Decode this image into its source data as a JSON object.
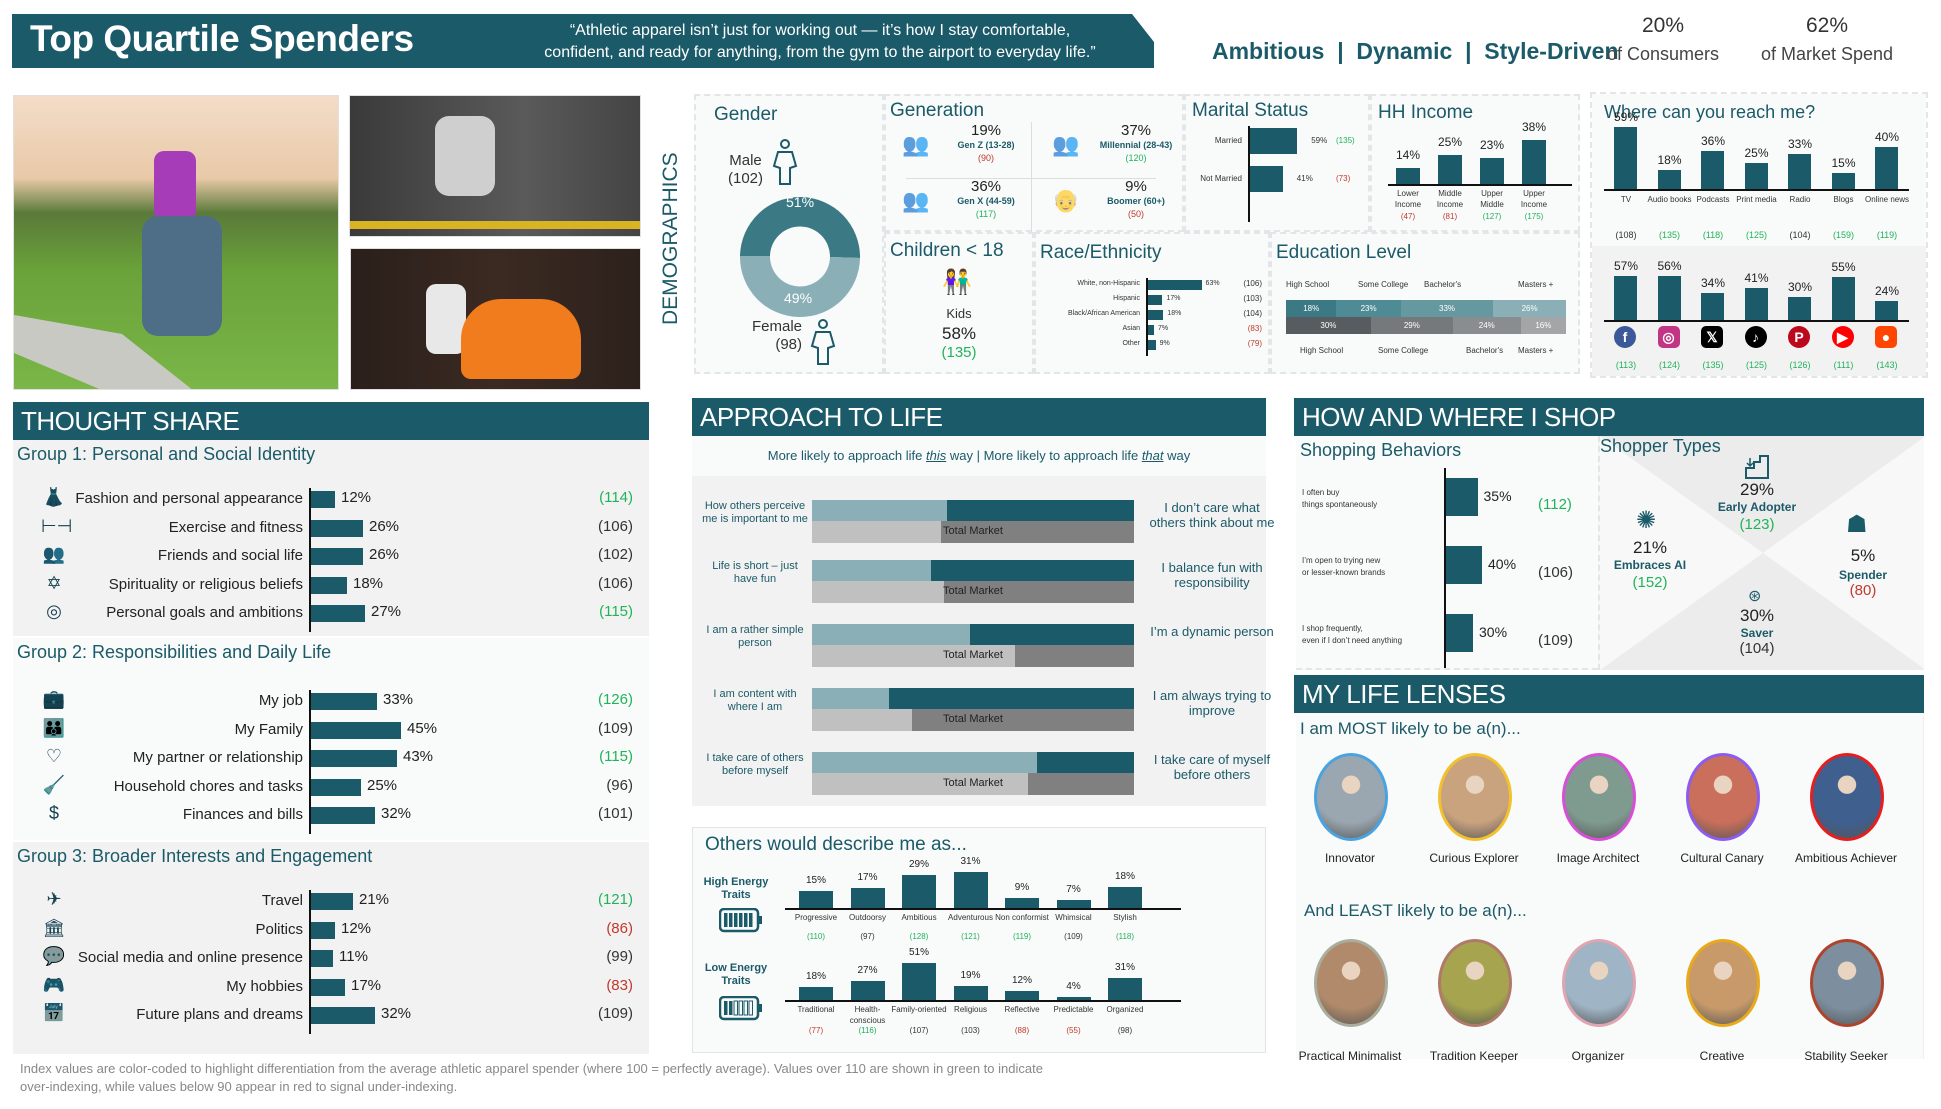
{
  "header": {
    "title": "Top Quartile Spenders",
    "quote_line1": "“Athletic apparel isn’t just for working out — it’s how I stay comfortable,",
    "quote_line2": "confident, and ready for anything, from the gym to the airport to everyday life.”",
    "tags": "Ambitious  |  Dynamic  |  Style-Driven",
    "stat1_value": "20%",
    "stat1_label": "of Consumers",
    "stat2_value": "62%",
    "stat2_label": "of Market Spend"
  },
  "photos": {
    "photo1": "woman-jogging-with-stroller",
    "photo2": "man-battle-ropes-gym",
    "photo3": "woman-situps-orange-leggings"
  },
  "demographics": {
    "side_label": "DEMOGRAPHICS",
    "gender": {
      "title": "Gender",
      "male_label": "Male",
      "male_index": "(102)",
      "male_pct": "51%",
      "female_label": "Female",
      "female_index": "(98)",
      "female_pct": "49%"
    },
    "generation": {
      "title": "Generation",
      "items": [
        {
          "pct": "19%",
          "label": "Gen Z (13-28)",
          "index": "(90)",
          "color": "r"
        },
        {
          "pct": "37%",
          "label": "Millennial (28-43)",
          "index": "(120)",
          "color": "g"
        },
        {
          "pct": "36%",
          "label": "Gen X (44-59)",
          "index": "(117)",
          "color": "g"
        },
        {
          "pct": "9%",
          "label": "Boomer (60+)",
          "index": "(50)",
          "color": "r"
        }
      ]
    },
    "marital": {
      "title": "Marital Status",
      "items": [
        {
          "label": "Married",
          "pct": "59%",
          "value": 59,
          "index": "(135)",
          "color": "g"
        },
        {
          "label": "Not Married",
          "pct": "41%",
          "value": 41,
          "index": "(73)",
          "color": "r"
        }
      ]
    },
    "income": {
      "title": "HH Income",
      "items": [
        {
          "pct": "14%",
          "value": 14,
          "label1": "Lower",
          "label2": "Income",
          "index": "(47)",
          "color": "r"
        },
        {
          "pct": "25%",
          "value": 25,
          "label1": "Middle",
          "label2": "Income",
          "index": "(81)",
          "color": "r"
        },
        {
          "pct": "23%",
          "value": 23,
          "label1": "Upper",
          "label2": "Middle",
          "index": "(127)",
          "color": "g"
        },
        {
          "pct": "38%",
          "value": 38,
          "label1": "Upper",
          "label2": "Income",
          "index": "(175)",
          "color": "g"
        }
      ]
    },
    "children": {
      "title": "Children < 18",
      "label": "Kids",
      "pct": "58%",
      "index": "(135)"
    },
    "race": {
      "title": "Race/Ethnicity",
      "items": [
        {
          "label": "White, non-Hispanic",
          "pct": "63%",
          "value": 63,
          "index": "(106)",
          "color": "k"
        },
        {
          "label": "Hispanic",
          "pct": "17%",
          "value": 17,
          "index": "(103)",
          "color": "k"
        },
        {
          "label": "Black/African  American",
          "pct": "18%",
          "value": 18,
          "index": "(104)",
          "color": "k"
        },
        {
          "label": "Asian",
          "pct": "7%",
          "value": 7,
          "index": "(83)",
          "color": "r"
        },
        {
          "label": "Other",
          "pct": "9%",
          "value": 9,
          "index": "(79)",
          "color": "r"
        }
      ]
    },
    "education": {
      "title": "Education Level",
      "top_labels": [
        "High School",
        "Some College",
        "Bachelor's",
        "Masters +"
      ],
      "segment_row": [
        {
          "pct": "18%",
          "value": 18,
          "color": "#3b7a84"
        },
        {
          "pct": "23%",
          "value": 23,
          "color": "#4f8b94"
        },
        {
          "pct": "33%",
          "value": 33,
          "color": "#66999f"
        },
        {
          "pct": "26%",
          "value": 26,
          "color": "#8aafb6"
        }
      ],
      "market_row": [
        {
          "pct": "30%",
          "value": 30,
          "color": "#575c60"
        },
        {
          "pct": "29%",
          "value": 29,
          "color": "#75797c"
        },
        {
          "pct": "24%",
          "value": 24,
          "color": "#8a8d90"
        },
        {
          "pct": "16%",
          "value": 16,
          "color": "#a3a5a7"
        }
      ],
      "bottom_labels": [
        "High School",
        "Some College",
        "Bachelor's",
        "Masters +"
      ]
    }
  },
  "reach": {
    "title": "Where can you reach me?",
    "media": [
      {
        "pct": "59%",
        "value": 59,
        "label": "TV",
        "index": "(108)",
        "color": "k"
      },
      {
        "pct": "18%",
        "value": 18,
        "label": "Audio books",
        "index": "(135)",
        "color": "g"
      },
      {
        "pct": "36%",
        "value": 36,
        "label": "Podcasts",
        "index": "(118)",
        "color": "g"
      },
      {
        "pct": "25%",
        "value": 25,
        "label": "Print media",
        "index": "(125)",
        "color": "g"
      },
      {
        "pct": "33%",
        "value": 33,
        "label": "Radio",
        "index": "(104)",
        "color": "k"
      },
      {
        "pct": "15%",
        "value": 15,
        "label": "Blogs",
        "index": "(159)",
        "color": "g"
      },
      {
        "pct": "40%",
        "value": 40,
        "label": "Online news",
        "index": "(119)",
        "color": "g"
      }
    ],
    "social": [
      {
        "pct": "57%",
        "value": 57,
        "icon": "facebook-icon",
        "glyph": "f",
        "bg": "#3b5998",
        "index": "(113)"
      },
      {
        "pct": "56%",
        "value": 56,
        "icon": "instagram-icon",
        "glyph": "◎",
        "bg": "#c13584",
        "index": "(124)"
      },
      {
        "pct": "34%",
        "value": 34,
        "icon": "x-icon",
        "glyph": "𝕏",
        "bg": "#000000",
        "index": "(135)"
      },
      {
        "pct": "41%",
        "value": 41,
        "icon": "tiktok-icon",
        "glyph": "♪",
        "bg": "#000000",
        "index": "(125)"
      },
      {
        "pct": "30%",
        "value": 30,
        "icon": "pinterest-icon",
        "glyph": "P",
        "bg": "#bd081c",
        "index": "(126)"
      },
      {
        "pct": "55%",
        "value": 55,
        "icon": "youtube-icon",
        "glyph": "▶",
        "bg": "#ff0000",
        "index": "(111)"
      },
      {
        "pct": "24%",
        "value": 24,
        "icon": "reddit-icon",
        "glyph": "●",
        "bg": "#ff4500",
        "index": "(143)"
      }
    ]
  },
  "thought_share": {
    "title": "THOUGHT SHARE",
    "groups": [
      {
        "title": "Group 1: Personal and Social Identity",
        "items": [
          {
            "label": "Fashion and personal appearance",
            "pct": "12%",
            "value": 12,
            "index": "(114)",
            "color": "g",
            "icon": "clothing-icon",
            "glyph": "👗"
          },
          {
            "label": "Exercise and fitness",
            "pct": "26%",
            "value": 26,
            "index": "(106)",
            "color": "k",
            "icon": "dumbbell-icon",
            "glyph": "⊢⊣"
          },
          {
            "label": "Friends and social life",
            "pct": "26%",
            "value": 26,
            "index": "(102)",
            "color": "k",
            "icon": "people-group-icon",
            "glyph": "👥"
          },
          {
            "label": "Spirituality or religious beliefs",
            "pct": "18%",
            "value": 18,
            "index": "(106)",
            "color": "k",
            "icon": "religion-icon",
            "glyph": "✡"
          },
          {
            "label": "Personal goals and ambitions",
            "pct": "27%",
            "value": 27,
            "index": "(115)",
            "color": "g",
            "icon": "target-icon",
            "glyph": "◎"
          }
        ]
      },
      {
        "title": "Group 2: Responsibilities and Daily Life",
        "items": [
          {
            "label": "My job",
            "pct": "33%",
            "value": 33,
            "index": "(126)",
            "color": "g",
            "icon": "briefcase-icon",
            "glyph": "💼"
          },
          {
            "label": "My Family",
            "pct": "45%",
            "value": 45,
            "index": "(109)",
            "color": "k",
            "icon": "family-icon",
            "glyph": "👪"
          },
          {
            "label": "My partner or relationship",
            "pct": "43%",
            "value": 43,
            "index": "(115)",
            "color": "g",
            "icon": "couple-icon",
            "glyph": "♡"
          },
          {
            "label": "Household chores and tasks",
            "pct": "25%",
            "value": 25,
            "index": "(96)",
            "color": "k",
            "icon": "cleaning-icon",
            "glyph": "🧹"
          },
          {
            "label": "Finances and bills",
            "pct": "32%",
            "value": 32,
            "index": "(101)",
            "color": "k",
            "icon": "money-bag-icon",
            "glyph": "$"
          }
        ]
      },
      {
        "title": "Group 3: Broader Interests and Engagement",
        "items": [
          {
            "label": "Travel",
            "pct": "21%",
            "value": 21,
            "index": "(121)",
            "color": "g",
            "icon": "globe-plane-icon",
            "glyph": "✈"
          },
          {
            "label": "Politics",
            "pct": "12%",
            "value": 12,
            "index": "(86)",
            "color": "r",
            "icon": "government-building-icon",
            "glyph": "🏛"
          },
          {
            "label": "Social media and online presence",
            "pct": "11%",
            "value": 11,
            "index": "(99)",
            "color": "k",
            "icon": "social-media-icon",
            "glyph": "💬"
          },
          {
            "label": "My hobbies",
            "pct": "17%",
            "value": 17,
            "index": "(83)",
            "color": "r",
            "icon": "hobbies-icon",
            "glyph": "🎮"
          },
          {
            "label": "Future plans and dreams",
            "pct": "32%",
            "value": 32,
            "index": "(109)",
            "color": "k",
            "icon": "calendar-icon",
            "glyph": "📅"
          }
        ]
      }
    ]
  },
  "approach": {
    "title": "APPROACH TO LIFE",
    "subtitle_a": "More likely to approach life ",
    "subtitle_this": "this",
    "subtitle_b": " way | More likely to approach life ",
    "subtitle_that": "that",
    "subtitle_c": " way",
    "market_label": "Total Market",
    "rows": [
      {
        "left": "How others perceive me is important to me",
        "right": "I don’t care what others think about me",
        "segment": 42,
        "market": 40
      },
      {
        "left": "Life is short – just have fun",
        "right": "I balance fun with responsibility",
        "segment": 37,
        "market": 41
      },
      {
        "left": "I am a rather simple person",
        "right": "I’m a dynamic person",
        "segment": 49,
        "market": 63
      },
      {
        "left": "I am content with where I am",
        "right": "I am always trying to improve",
        "segment": 24,
        "market": 31
      },
      {
        "left": "I take care of others before myself",
        "right": "I take care of myself before others",
        "segment": 70,
        "market": 67
      }
    ]
  },
  "describe": {
    "title": "Others would describe me as...",
    "high_label": "High Energy Traits",
    "low_label": "Low Energy Traits",
    "high": [
      {
        "label": "Progressive",
        "pct": "15%",
        "value": 15,
        "index": "(110)",
        "color": "g"
      },
      {
        "label": "Outdoorsy",
        "pct": "17%",
        "value": 17,
        "index": "(97)",
        "color": "k"
      },
      {
        "label": "Ambitious",
        "pct": "29%",
        "value": 29,
        "index": "(128)",
        "color": "g"
      },
      {
        "label": "Adventurous",
        "pct": "31%",
        "value": 31,
        "index": "(121)",
        "color": "g"
      },
      {
        "label": "Non conformist",
        "pct": "9%",
        "value": 9,
        "index": "(119)",
        "color": "g"
      },
      {
        "label": "Whimsical",
        "pct": "7%",
        "value": 7,
        "index": "(109)",
        "color": "k"
      },
      {
        "label": "Stylish",
        "pct": "18%",
        "value": 18,
        "index": "(118)",
        "color": "g"
      }
    ],
    "low": [
      {
        "label": "Traditional",
        "pct": "18%",
        "value": 18,
        "index": "(77)",
        "color": "r"
      },
      {
        "label": "Health-conscious",
        "pct": "27%",
        "value": 27,
        "index": "(116)",
        "color": "g"
      },
      {
        "label": "Family-oriented",
        "pct": "51%",
        "value": 51,
        "index": "(107)",
        "color": "k"
      },
      {
        "label": "Religious",
        "pct": "19%",
        "value": 19,
        "index": "(103)",
        "color": "k"
      },
      {
        "label": "Reflective",
        "pct": "12%",
        "value": 12,
        "index": "(88)",
        "color": "r"
      },
      {
        "label": "Predictable",
        "pct": "4%",
        "value": 4,
        "index": "(55)",
        "color": "r"
      },
      {
        "label": "Organized",
        "pct": "31%",
        "value": 31,
        "index": "(98)",
        "color": "k"
      }
    ]
  },
  "shop": {
    "title": "HOW AND WHERE I SHOP",
    "behaviors_title": "Shopping Behaviors",
    "behaviors": [
      {
        "line1": "I often buy",
        "line2": "things spontaneously",
        "pct": "35%",
        "value": 35,
        "index": "(112)",
        "color": "g"
      },
      {
        "line1": "I’m open to trying new",
        "line2": "or lesser-known  brands",
        "pct": "40%",
        "value": 40,
        "index": "(106)",
        "color": "k"
      },
      {
        "line1": "I shop frequently,",
        "line2": "even if I don’t need anything",
        "pct": "30%",
        "value": 30,
        "index": "(109)",
        "color": "k"
      }
    ],
    "types_title": "Shopper Types",
    "types": {
      "early": {
        "pct": "29%",
        "label": "Early Adopter",
        "index": "(123)"
      },
      "ai": {
        "pct": "21%",
        "label": "Embraces AI",
        "index": "(152)"
      },
      "spender": {
        "pct": "5%",
        "label": "Spender",
        "index": "(80)"
      },
      "saver": {
        "pct": "30%",
        "label": "Saver",
        "index": "(104)"
      }
    }
  },
  "lenses": {
    "title": "MY LIFE LENSES",
    "most_title": "I am MOST likely to be a(n)...",
    "most": [
      {
        "label": "Innovator",
        "ring": "#4aa3e0",
        "bg": "#9aa7b0"
      },
      {
        "label": "Curious Explorer",
        "ring": "#f2c12e",
        "bg": "#c9a27e"
      },
      {
        "label": "Image Architect",
        "ring": "#d64fd6",
        "bg": "#7f9a8f"
      },
      {
        "label": "Cultural Canary",
        "ring": "#8a5cf0",
        "bg": "#c96f5b"
      },
      {
        "label": "Ambitious Achiever",
        "ring": "#e61e1e",
        "bg": "#3f5f8f"
      }
    ],
    "least_title": "And LEAST likely to be a(n)...",
    "least": [
      {
        "label": "Practical Minimalist",
        "ring": "#a9ad9e",
        "bg": "#b08a6a"
      },
      {
        "label": "Tradition Keeper",
        "ring": "#b07a6a",
        "bg": "#a6a44e"
      },
      {
        "label": "Organizer",
        "ring": "#e0a5b0",
        "bg": "#9fb4c4"
      },
      {
        "label": "Creative",
        "ring": "#e8a91c",
        "bg": "#c89a6a"
      },
      {
        "label": "Stability Seeker",
        "ring": "#b0432c",
        "bg": "#7d8f9f"
      }
    ]
  },
  "footer": {
    "line1": "Index values are color-coded to highlight differentiation from the average athletic apparel spender (where 100 = perfectly average). Values over 110 are shown in green to indicate",
    "line2": "over-indexing, while values below 90 appear in red to signal under-indexing."
  }
}
